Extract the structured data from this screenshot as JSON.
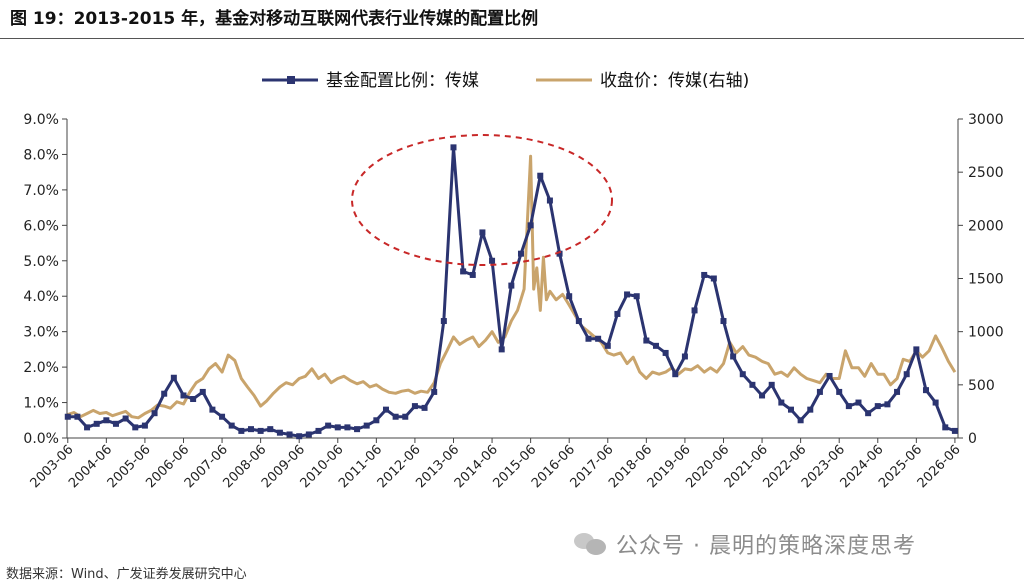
{
  "figure": {
    "title": "图 19：2013-2015 年，基金对移动互联网代表行业传媒的配置比例",
    "source": "数据来源：Wind、广发证券发展研究中心",
    "watermark": "公众号 · 晨明的策略深度思考"
  },
  "chart_data": {
    "type": "line",
    "legend_position": "top-center",
    "grid": false,
    "x_tick_labels": [
      "2003-06",
      "2004-06",
      "2005-06",
      "2006-06",
      "2007-06",
      "2008-06",
      "2009-06",
      "2010-06",
      "2011-06",
      "2012-06",
      "2013-06",
      "2014-06",
      "2015-06",
      "2016-06",
      "2017-06",
      "2018-06",
      "2019-06",
      "2020-06",
      "2021-06",
      "2022-06",
      "2023-06",
      "2024-06",
      "2025-06",
      "2026-06"
    ],
    "xlim": [
      2003.4,
      2026.5
    ],
    "y_left": {
      "ticks": [
        "0.0%",
        "1.0%",
        "2.0%",
        "3.0%",
        "4.0%",
        "5.0%",
        "6.0%",
        "7.0%",
        "8.0%",
        "9.0%"
      ],
      "ylim": [
        0,
        9
      ]
    },
    "y_right": {
      "ticks": [
        "0",
        "500",
        "1000",
        "1500",
        "2000",
        "2500",
        "3000"
      ],
      "ylim": [
        0,
        3000
      ]
    },
    "series": [
      {
        "name": "基金配置比例：传媒",
        "axis": "left",
        "color": "#2b3470",
        "marker": "square",
        "x": [
          2003.42,
          2003.67,
          2003.92,
          2004.17,
          2004.42,
          2004.67,
          2004.92,
          2005.17,
          2005.42,
          2005.67,
          2005.92,
          2006.17,
          2006.42,
          2006.67,
          2006.92,
          2007.17,
          2007.42,
          2007.67,
          2007.92,
          2008.17,
          2008.42,
          2008.67,
          2008.92,
          2009.17,
          2009.42,
          2009.67,
          2009.92,
          2010.17,
          2010.42,
          2010.67,
          2010.92,
          2011.17,
          2011.42,
          2011.67,
          2011.92,
          2012.17,
          2012.42,
          2012.67,
          2012.92,
          2013.17,
          2013.42,
          2013.67,
          2013.92,
          2014.17,
          2014.42,
          2014.67,
          2014.92,
          2015.17,
          2015.42,
          2015.67,
          2015.92,
          2016.17,
          2016.42,
          2016.67,
          2016.92,
          2017.17,
          2017.42,
          2017.67,
          2017.92,
          2018.17,
          2018.42,
          2018.67,
          2018.92,
          2019.17,
          2019.42,
          2019.67,
          2019.92,
          2020.17,
          2020.42,
          2020.67,
          2020.92,
          2021.17,
          2021.42,
          2021.67,
          2021.92,
          2022.17,
          2022.42,
          2022.67,
          2022.92,
          2023.17,
          2023.42,
          2023.67,
          2023.92,
          2024.17,
          2024.42,
          2024.67,
          2024.92,
          2025.17,
          2025.42,
          2025.67,
          2025.92,
          2026.17,
          2026.42
        ],
        "values": [
          0.6,
          0.6,
          0.3,
          0.4,
          0.5,
          0.4,
          0.55,
          0.3,
          0.35,
          0.7,
          1.25,
          1.7,
          1.2,
          1.1,
          1.3,
          0.8,
          0.6,
          0.35,
          0.2,
          0.25,
          0.2,
          0.25,
          0.15,
          0.1,
          0.05,
          0.1,
          0.2,
          0.35,
          0.3,
          0.3,
          0.25,
          0.35,
          0.5,
          0.8,
          0.6,
          0.6,
          0.9,
          0.85,
          1.3,
          3.3,
          8.2,
          4.7,
          4.6,
          5.8,
          5.0,
          2.5,
          4.3,
          5.2,
          6.0,
          7.4,
          6.7,
          5.2,
          4.0,
          3.3,
          2.8,
          2.8,
          2.6,
          3.5,
          4.05,
          4.0,
          2.75,
          2.6,
          2.4,
          1.8,
          2.3,
          3.6,
          4.6,
          4.5,
          3.3,
          2.3,
          1.8,
          1.5,
          1.2,
          1.5,
          1.0,
          0.8,
          0.5,
          0.8,
          1.3,
          1.75,
          1.3,
          0.9,
          1.0,
          0.7,
          0.9,
          0.95,
          1.3,
          1.8,
          2.5,
          1.35,
          1.0,
          0.3,
          0.2
        ]
      },
      {
        "name": "收盘价：传媒(右轴)",
        "axis": "right",
        "color": "#c9a46c",
        "marker": "none",
        "x": [
          2003.42,
          2003.58,
          2003.75,
          2003.92,
          2004.08,
          2004.25,
          2004.42,
          2004.58,
          2004.75,
          2004.92,
          2005.08,
          2005.25,
          2005.42,
          2005.58,
          2005.75,
          2005.92,
          2006.08,
          2006.25,
          2006.42,
          2006.58,
          2006.75,
          2006.92,
          2007.08,
          2007.25,
          2007.42,
          2007.58,
          2007.75,
          2007.92,
          2008.08,
          2008.25,
          2008.42,
          2008.58,
          2008.75,
          2008.92,
          2009.08,
          2009.25,
          2009.42,
          2009.58,
          2009.75,
          2009.92,
          2010.08,
          2010.25,
          2010.42,
          2010.58,
          2010.75,
          2010.92,
          2011.08,
          2011.25,
          2011.42,
          2011.58,
          2011.75,
          2011.92,
          2012.08,
          2012.25,
          2012.42,
          2012.58,
          2012.75,
          2012.92,
          2013.08,
          2013.25,
          2013.42,
          2013.58,
          2013.75,
          2013.92,
          2014.08,
          2014.25,
          2014.42,
          2014.58,
          2014.75,
          2014.92,
          2015.08,
          2015.25,
          2015.33,
          2015.42,
          2015.5,
          2015.58,
          2015.67,
          2015.75,
          2015.83,
          2015.92,
          2016.08,
          2016.25,
          2016.42,
          2016.58,
          2016.75,
          2016.92,
          2017.08,
          2017.25,
          2017.42,
          2017.58,
          2017.75,
          2017.92,
          2018.08,
          2018.25,
          2018.42,
          2018.58,
          2018.75,
          2018.92,
          2019.08,
          2019.25,
          2019.42,
          2019.58,
          2019.75,
          2019.92,
          2020.08,
          2020.25,
          2020.42,
          2020.58,
          2020.75,
          2020.92,
          2021.08,
          2021.25,
          2021.42,
          2021.58,
          2021.75,
          2021.92,
          2022.08,
          2022.25,
          2022.42,
          2022.58,
          2022.75,
          2022.92,
          2023.08,
          2023.25,
          2023.42,
          2023.58,
          2023.75,
          2023.92,
          2024.08,
          2024.25,
          2024.42,
          2024.58,
          2024.75,
          2024.92,
          2025.08,
          2025.25,
          2025.42,
          2025.58,
          2025.75,
          2025.92,
          2026.08,
          2026.25,
          2026.42
        ],
        "values": [
          220,
          240,
          200,
          230,
          260,
          230,
          240,
          210,
          230,
          250,
          200,
          190,
          230,
          260,
          310,
          300,
          280,
          340,
          320,
          430,
          520,
          560,
          650,
          700,
          620,
          780,
          730,
          560,
          480,
          400,
          300,
          350,
          420,
          480,
          520,
          500,
          560,
          580,
          650,
          560,
          600,
          520,
          560,
          580,
          540,
          510,
          530,
          480,
          500,
          460,
          430,
          420,
          440,
          450,
          420,
          440,
          430,
          520,
          700,
          820,
          950,
          880,
          920,
          950,
          860,
          920,
          1000,
          900,
          950,
          1100,
          1200,
          1400,
          2000,
          2650,
          1400,
          1600,
          1200,
          1700,
          1300,
          1380,
          1300,
          1350,
          1250,
          1150,
          1050,
          1000,
          950,
          900,
          800,
          780,
          800,
          700,
          760,
          620,
          560,
          620,
          600,
          620,
          660,
          600,
          650,
          640,
          680,
          620,
          660,
          620,
          700,
          900,
          800,
          860,
          780,
          760,
          720,
          700,
          600,
          620,
          580,
          660,
          600,
          560,
          540,
          520,
          600,
          560,
          560,
          820,
          660,
          660,
          580,
          700,
          600,
          600,
          500,
          560,
          740,
          720,
          820,
          760,
          820,
          960,
          850,
          720,
          620
        ]
      }
    ],
    "annotation": {
      "type": "dashed-ellipse",
      "color": "#c82828"
    }
  }
}
